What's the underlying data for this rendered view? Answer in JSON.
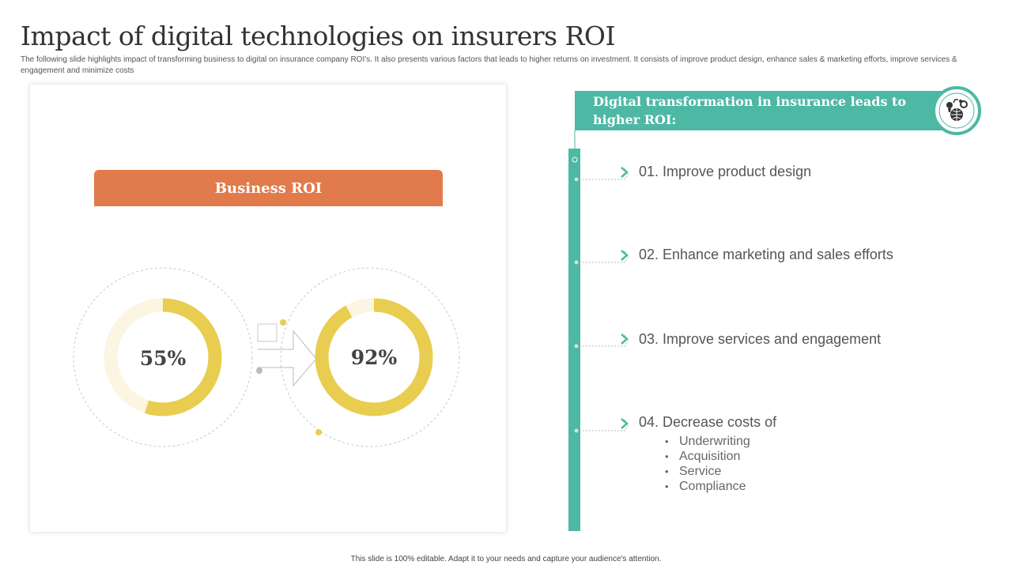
{
  "title": "Impact of digital technologies on insurers ROI",
  "subtitle": "The following slide highlights impact of transforming business to digital on insurance company ROI's. It also presents various factors that leads to higher returns on investment. It consists of improve product design, enhance sales & marketing efforts, improve services & engagement and minimize costs",
  "business_roi": {
    "label": "Business ROI",
    "before": {
      "percent": 55,
      "label": "55%"
    },
    "after": {
      "percent": 92,
      "label": "92%"
    }
  },
  "colors": {
    "orange": "#e27b4b",
    "teal": "#4db8a4",
    "ring_fill": "#e8cd50",
    "ring_track": "#fbf5e1"
  },
  "icon": "digital-globe-icon",
  "right_panel": {
    "header": "Digital transformation in insurance leads to higher ROI:",
    "items": [
      {
        "label": "01. Improve product design"
      },
      {
        "label": "02. Enhance marketing and sales efforts"
      },
      {
        "label": "03. Improve services and engagement"
      },
      {
        "label": "04. Decrease costs of"
      }
    ],
    "cost_items": [
      "Underwriting",
      "Acquisition",
      "Service",
      "Compliance"
    ]
  },
  "footer": "This slide is 100% editable. Adapt it to your needs and capture your audience's attention."
}
